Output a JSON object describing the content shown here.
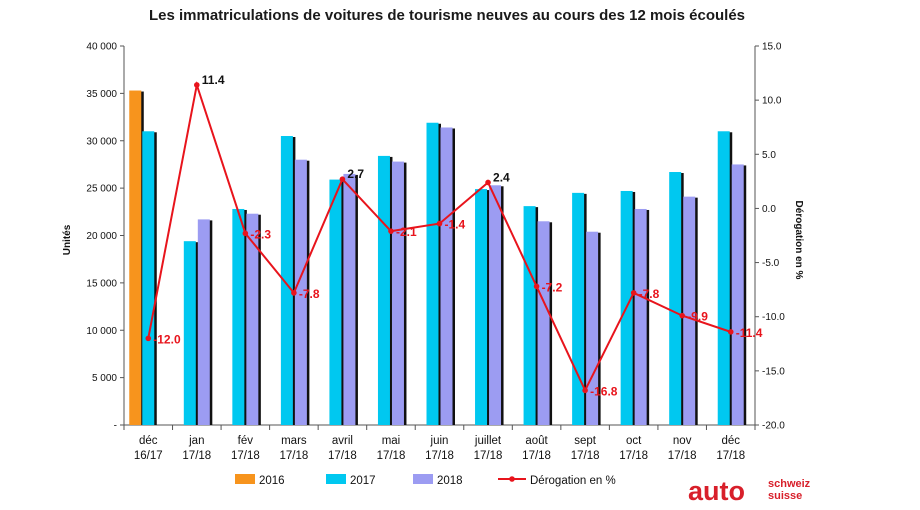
{
  "chart_data": {
    "type": "bar",
    "title": "Les immatriculations de voitures de tourisme neuves au cours des 12 mois écoulés",
    "ylabel": "Unités",
    "y2label": "Dérogation en %",
    "ylim": [
      0,
      40000
    ],
    "y2lim": [
      -20,
      15
    ],
    "yticks": [
      "-",
      "5 000",
      "10 000",
      "15 000",
      "20 000",
      "25 000",
      "30 000",
      "35 000",
      "40 000"
    ],
    "y2ticks": [
      "-20.0",
      "-15.0",
      "-10.0",
      "-5.0",
      "0.0",
      "5.0",
      "10.0",
      "15.0"
    ],
    "categories": [
      [
        "déc",
        "16/17"
      ],
      [
        "jan",
        "17/18"
      ],
      [
        "fév",
        "17/18"
      ],
      [
        "mars",
        "17/18"
      ],
      [
        "avril",
        "17/18"
      ],
      [
        "mai",
        "17/18"
      ],
      [
        "juin",
        "17/18"
      ],
      [
        "juillet",
        "17/18"
      ],
      [
        "août",
        "17/18"
      ],
      [
        "sept",
        "17/18"
      ],
      [
        "oct",
        "17/18"
      ],
      [
        "nov",
        "17/18"
      ],
      [
        "déc",
        "17/18"
      ]
    ],
    "series": [
      {
        "name": "2016",
        "color": "#f7941d",
        "values": [
          35300,
          null,
          null,
          null,
          null,
          null,
          null,
          null,
          null,
          null,
          null,
          null,
          null
        ]
      },
      {
        "name": "2017",
        "color": "#00c8f0",
        "values": [
          31000,
          19400,
          22800,
          30500,
          25900,
          28400,
          31900,
          24900,
          23100,
          24500,
          24700,
          26700,
          31000
        ]
      },
      {
        "name": "2018",
        "color": "#9c9cf2",
        "values": [
          null,
          21700,
          22300,
          28000,
          26500,
          27800,
          31400,
          25300,
          21500,
          20400,
          22800,
          24100,
          27500
        ]
      }
    ],
    "line": {
      "name": "Dérogation en %",
      "color": "#e8141c",
      "values": [
        -12.0,
        11.4,
        -2.3,
        -7.8,
        2.7,
        -2.1,
        -1.4,
        2.4,
        -7.2,
        -16.8,
        -7.8,
        -9.9,
        -11.4
      ],
      "labels": [
        "-12.0",
        "11.4",
        "-2.3",
        "-7.8",
        "2.7",
        "-2.1",
        "-1.4",
        "2.4",
        "-7.2",
        "-16.8",
        "-7.8",
        "-9.9",
        "-11.4"
      ]
    },
    "legend_position": "bottom",
    "grid": false
  },
  "logo": {
    "main": "auto",
    "line1": "schweiz",
    "line2": "suisse",
    "color": "#d81f2a"
  }
}
